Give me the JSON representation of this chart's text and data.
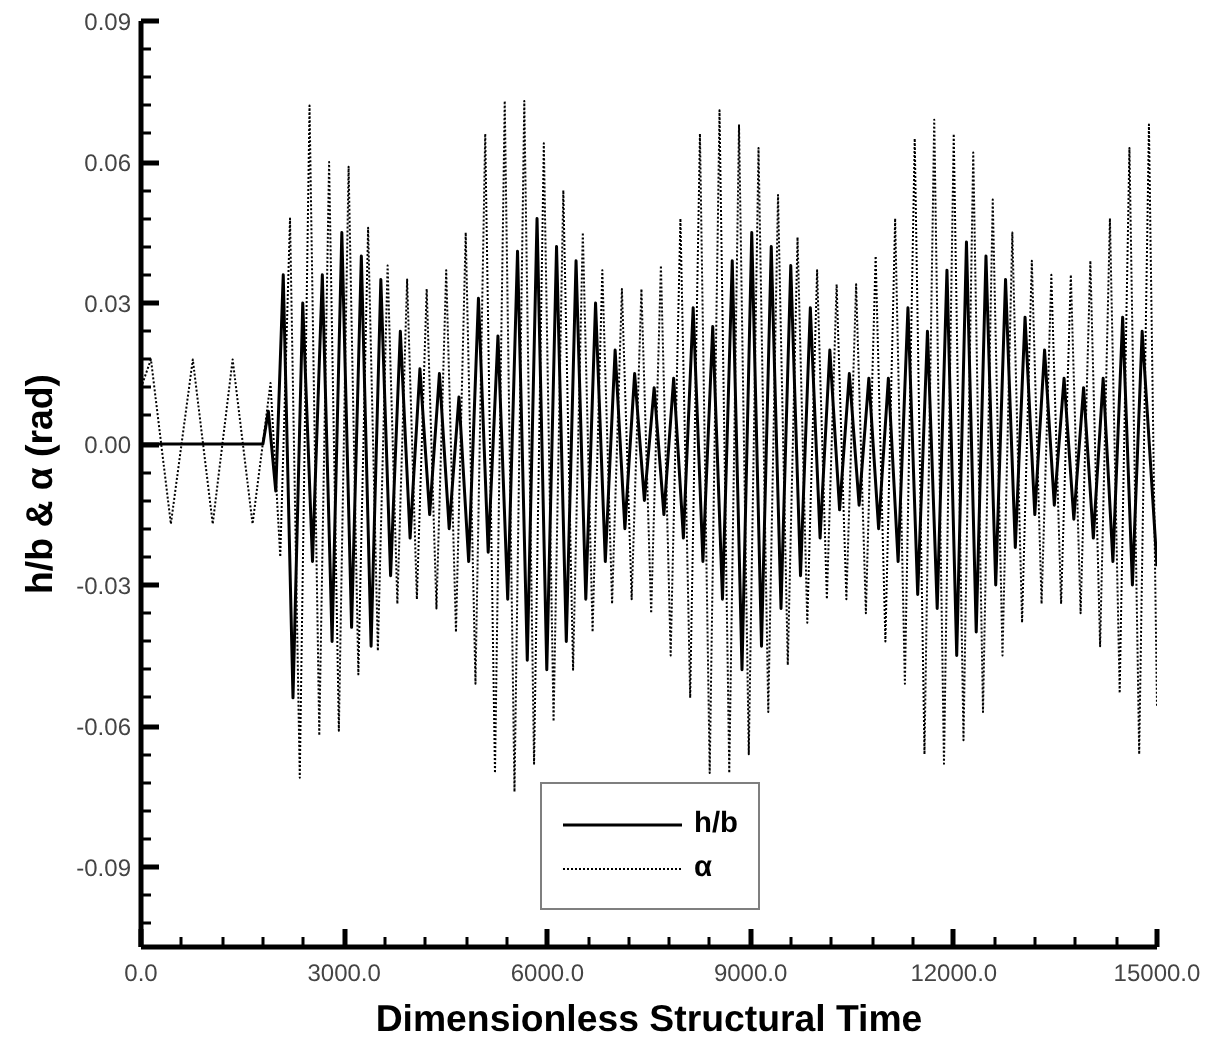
{
  "chart_data": {
    "type": "line",
    "xlabel": "Dimensionless Structural Time",
    "ylabel": "h/b & α (rad)",
    "xlim": [
      0,
      15000
    ],
    "ylim": [
      -0.107,
      0.09
    ],
    "xticks": [
      {
        "value": 0,
        "label": "0.0"
      },
      {
        "value": 3000,
        "label": "3000.0"
      },
      {
        "value": 6000,
        "label": "6000.0"
      },
      {
        "value": 9000,
        "label": "9000.0"
      },
      {
        "value": 12000,
        "label": "12000.0"
      },
      {
        "value": 15000,
        "label": "15000.0"
      }
    ],
    "yticks": [
      {
        "value": -0.09,
        "label": "-0.09"
      },
      {
        "value": -0.06,
        "label": "-0.06"
      },
      {
        "value": -0.03,
        "label": "-0.03"
      },
      {
        "value": 0,
        "label": "0.00"
      },
      {
        "value": 0.03,
        "label": "0.03"
      },
      {
        "value": 0.06,
        "label": "0.06"
      },
      {
        "value": 0.09,
        "label": "0.09"
      }
    ],
    "grid": false,
    "legend": "bottom",
    "series": [
      {
        "name": "h/b",
        "color": "#000000",
        "line_style": "solid",
        "x": [
          0,
          1800,
          1880,
          1990,
          2100,
          2244,
          2388,
          2532,
          2677,
          2821,
          2965,
          3109,
          3253,
          3397,
          3541,
          3685,
          3829,
          3973,
          4118,
          4262,
          4406,
          4550,
          4694,
          4838,
          4982,
          5126,
          5270,
          5414,
          5559,
          5703,
          5847,
          5991,
          6135,
          6279,
          6423,
          6567,
          6711,
          6855,
          7000,
          7144,
          7288,
          7432,
          7576,
          7720,
          7864,
          8008,
          8152,
          8296,
          8441,
          8585,
          8729,
          8873,
          9017,
          9161,
          9305,
          9449,
          9593,
          9737,
          9882,
          10026,
          10170,
          10314,
          10458,
          10602,
          10746,
          10890,
          11034,
          11178,
          11323,
          11467,
          11611,
          11755,
          11899,
          12043,
          12187,
          12331,
          12475,
          12619,
          12764,
          12908,
          13052,
          13196,
          13340,
          13484,
          13628,
          13772,
          13916,
          14060,
          14205,
          14349,
          14493,
          14637,
          14781,
          15000
        ],
        "values": [
          0,
          0,
          0.007,
          -0.01,
          0.036,
          -0.054,
          0.03,
          -0.025,
          0.036,
          -0.042,
          0.045,
          -0.039,
          0.04,
          -0.043,
          0.035,
          -0.028,
          0.024,
          -0.02,
          0.016,
          -0.015,
          0.015,
          -0.018,
          0.01,
          -0.025,
          0.031,
          -0.023,
          0.023,
          -0.033,
          0.041,
          -0.046,
          0.048,
          -0.048,
          0.042,
          -0.042,
          0.039,
          -0.033,
          0.03,
          -0.025,
          0.02,
          -0.018,
          0.015,
          -0.012,
          0.012,
          -0.015,
          0.014,
          -0.02,
          0.029,
          -0.025,
          0.025,
          -0.033,
          0.039,
          -0.048,
          0.045,
          -0.043,
          0.042,
          -0.035,
          0.038,
          -0.028,
          0.029,
          -0.02,
          0.02,
          -0.014,
          0.015,
          -0.013,
          0.014,
          -0.018,
          0.014,
          -0.025,
          0.029,
          -0.032,
          0.024,
          -0.035,
          0.037,
          -0.045,
          0.043,
          -0.04,
          0.04,
          -0.03,
          0.035,
          -0.022,
          0.027,
          -0.015,
          0.02,
          -0.013,
          0.014,
          -0.016,
          0.012,
          -0.02,
          0.014,
          -0.025,
          0.027,
          -0.03,
          0.024,
          -0.026
        ]
      },
      {
        "name": "α",
        "color": "#000000",
        "line_style": "dotted",
        "x": [
          0,
          147,
          441,
          765,
          1059,
          1353,
          1647,
          1912,
          2056,
          2200,
          2344,
          2488,
          2632,
          2777,
          2921,
          3065,
          3209,
          3353,
          3497,
          3641,
          3785,
          3929,
          4073,
          4218,
          4362,
          4506,
          4650,
          4794,
          4938,
          5082,
          5226,
          5370,
          5514,
          5659,
          5803,
          5947,
          6091,
          6235,
          6379,
          6523,
          6667,
          6811,
          6955,
          7100,
          7244,
          7388,
          7532,
          7676,
          7820,
          7964,
          8108,
          8252,
          8396,
          8541,
          8685,
          8829,
          8973,
          9117,
          9261,
          9405,
          9549,
          9693,
          9837,
          9982,
          10126,
          10270,
          10414,
          10558,
          10702,
          10846,
          10990,
          11134,
          11278,
          11423,
          11567,
          11711,
          11855,
          11999,
          12143,
          12287,
          12431,
          12575,
          12719,
          12864,
          13008,
          13152,
          13296,
          13440,
          13584,
          13728,
          13872,
          14016,
          14160,
          14305,
          14449,
          14593,
          14737,
          14881,
          15000
        ],
        "values": [
          0.012,
          0.018,
          -0.017,
          0.018,
          -0.017,
          0.018,
          -0.017,
          0.013,
          -0.024,
          0.048,
          -0.071,
          0.072,
          -0.062,
          0.06,
          -0.061,
          0.059,
          -0.049,
          0.046,
          -0.044,
          0.038,
          -0.034,
          0.035,
          -0.033,
          0.033,
          -0.035,
          0.037,
          -0.04,
          0.045,
          -0.051,
          0.066,
          -0.07,
          0.073,
          -0.074,
          0.073,
          -0.068,
          0.064,
          -0.059,
          0.054,
          -0.048,
          0.045,
          -0.04,
          0.037,
          -0.034,
          0.033,
          -0.033,
          0.033,
          -0.036,
          0.038,
          -0.045,
          0.048,
          -0.054,
          0.066,
          -0.07,
          0.071,
          -0.07,
          0.068,
          -0.066,
          0.063,
          -0.057,
          0.053,
          -0.047,
          0.044,
          -0.038,
          0.037,
          -0.033,
          0.034,
          -0.033,
          0.034,
          -0.036,
          0.04,
          -0.042,
          0.048,
          -0.051,
          0.065,
          -0.066,
          0.069,
          -0.068,
          0.066,
          -0.063,
          0.062,
          -0.057,
          0.052,
          -0.045,
          0.045,
          -0.038,
          0.039,
          -0.034,
          0.036,
          -0.034,
          0.036,
          -0.036,
          0.039,
          -0.043,
          0.048,
          -0.053,
          0.063,
          -0.066,
          0.068,
          -0.056
        ]
      }
    ]
  }
}
